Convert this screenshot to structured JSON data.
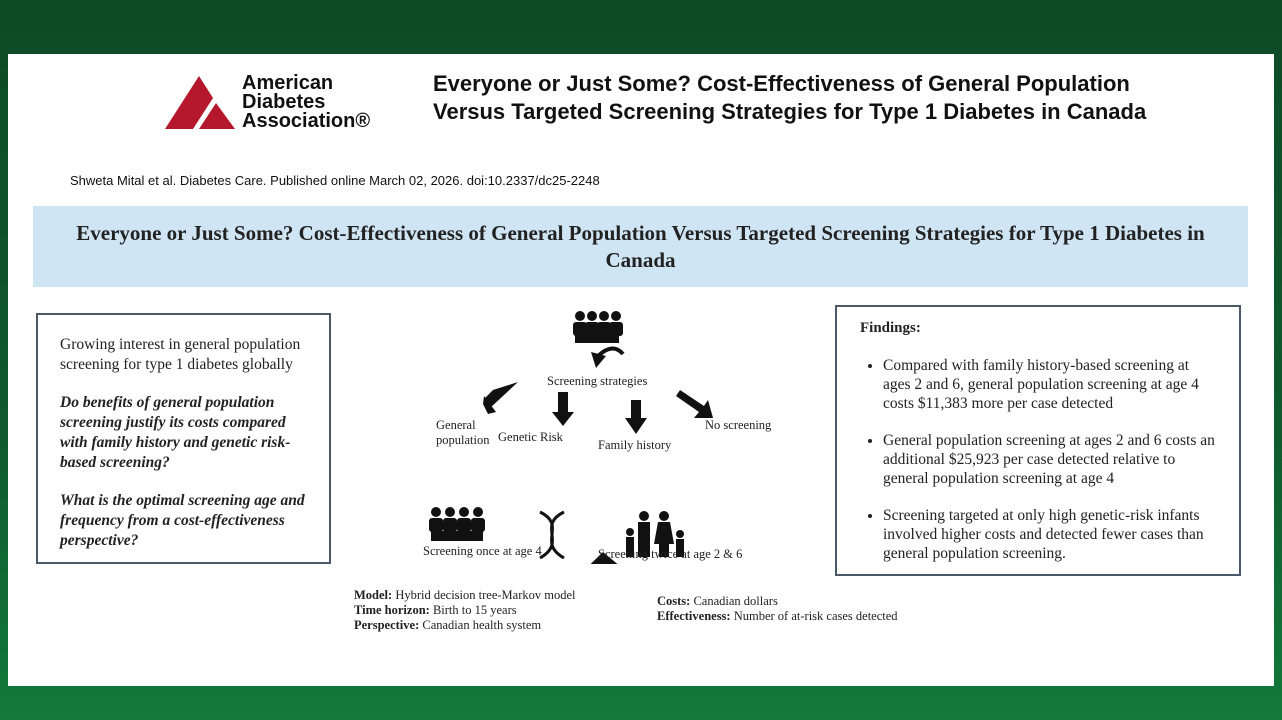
{
  "header": {
    "logo": [
      "American",
      "Diabetes",
      "Association®"
    ],
    "title": "Everyone or Just Some? Cost-Effectiveness of General Population Versus Targeted Screening Strategies for Type 1 Diabetes in Canada",
    "citation": "Shweta Mital et al. Diabetes Care. Published online  March 02, 2026. doi:10.2337/dc25-2248"
  },
  "banner": {
    "title": "Everyone or Just Some? Cost-Effectiveness of General Population Versus Targeted Screening Strategies for Type 1 Diabetes in Canada"
  },
  "left_box": {
    "intro": "Growing interest in general population screening for type 1 diabetes globally",
    "questions": [
      "Do benefits of general population screening justify its costs compared with family history and genetic risk-based screening?",
      "What is the optimal screening age and frequency from a cost-effectiveness perspective?"
    ]
  },
  "diagram": {
    "root": "Screening strategies",
    "branches": [
      "General population",
      "Genetic Risk",
      "Family history",
      "No screening"
    ],
    "outcomes": [
      "Screening once at age 4",
      "Screening twice at age 2 & 6"
    ]
  },
  "methods": [
    {
      "label": "Model:",
      "text": "Hybrid decision tree-Markov model"
    },
    {
      "label": "Time horizon:",
      "text": "Birth to 15 years"
    },
    {
      "label": "Perspective:",
      "text": "Canadian health system"
    },
    {
      "label": "Costs:",
      "text": "Canadian dollars"
    },
    {
      "label": "Effectiveness:",
      "text": "Number of at-risk cases detected"
    }
  ],
  "findings": {
    "title": "Findings:",
    "items": [
      "Compared with family history-based screening at ages 2 and 6, general population screening at age 4 costs $11,383 more per case detected",
      "General population screening at ages 2 and 6 costs an additional $25,923 per case detected relative to general population screening at age 4",
      "Screening targeted at only high genetic-risk infants involved higher costs and detected fewer cases than general population screening."
    ]
  }
}
